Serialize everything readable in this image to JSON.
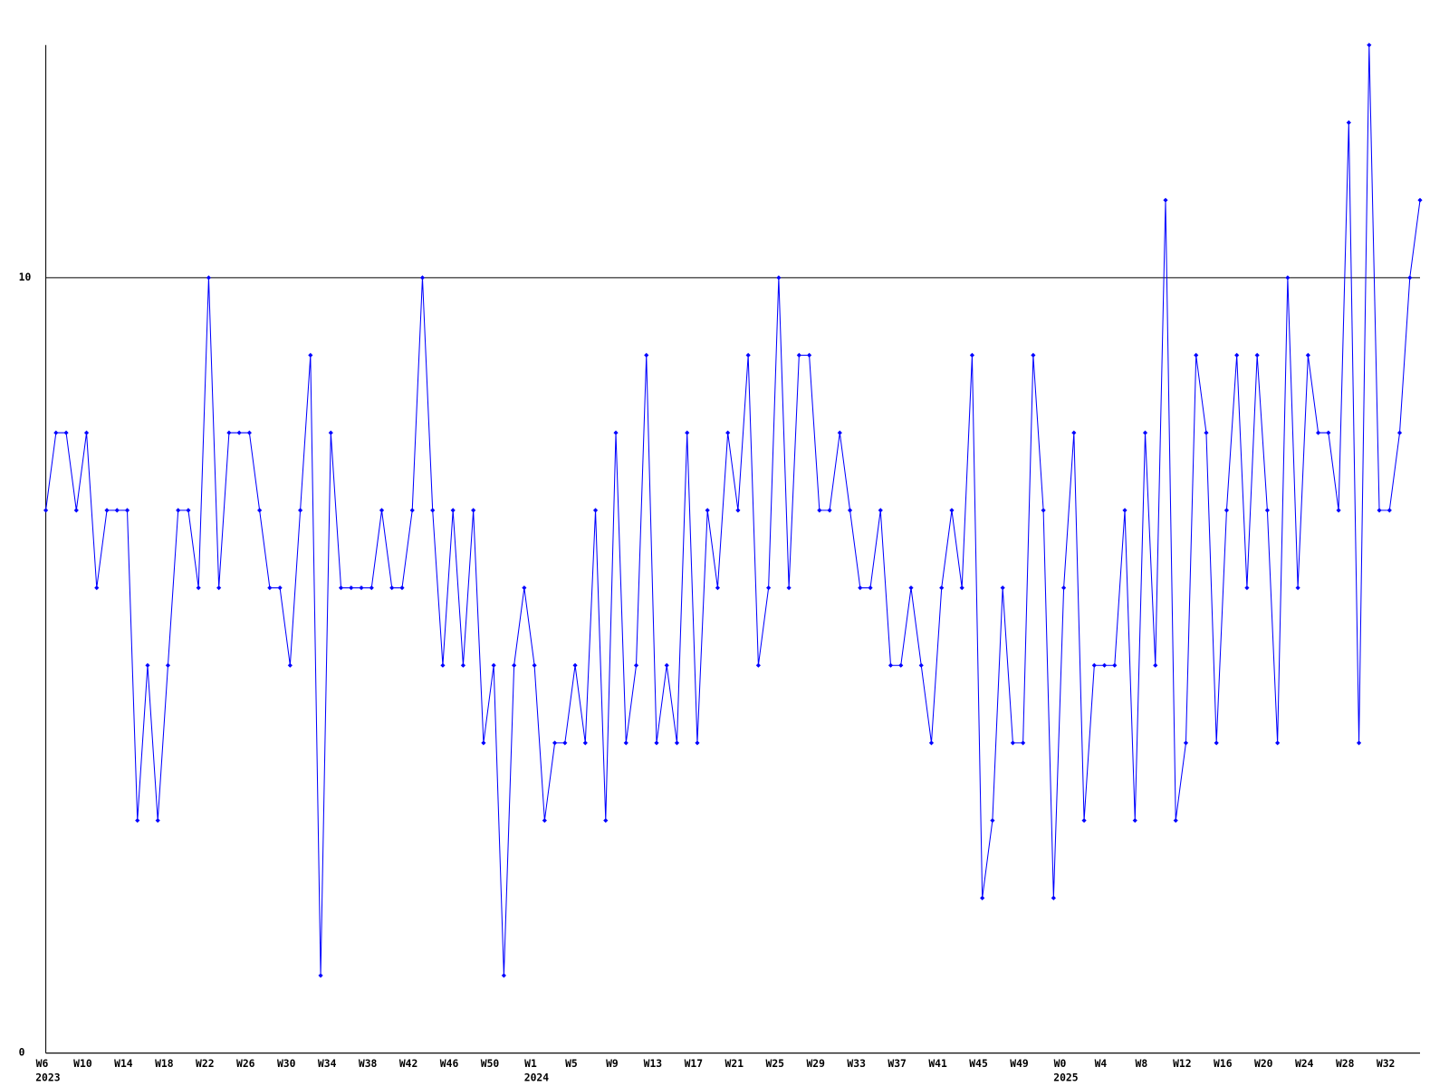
{
  "chart_data": {
    "type": "line",
    "categories": [
      [
        "W6",
        "2023"
      ],
      null,
      null,
      null,
      "W10",
      null,
      null,
      null,
      "W14",
      null,
      null,
      null,
      "W18",
      null,
      null,
      null,
      "W22",
      null,
      null,
      null,
      "W26",
      null,
      null,
      null,
      "W30",
      null,
      null,
      null,
      "W34",
      null,
      null,
      null,
      "W38",
      null,
      null,
      null,
      "W42",
      null,
      null,
      null,
      "W46",
      null,
      null,
      null,
      "W50",
      null,
      null,
      null,
      [
        "W1",
        "2024"
      ],
      null,
      null,
      null,
      "W5",
      null,
      null,
      null,
      "W9",
      null,
      null,
      null,
      "W13",
      null,
      null,
      null,
      "W17",
      null,
      null,
      null,
      "W21",
      null,
      null,
      null,
      "W25",
      null,
      null,
      null,
      "W29",
      null,
      null,
      null,
      "W33",
      null,
      null,
      null,
      "W37",
      null,
      null,
      null,
      "W41",
      null,
      null,
      null,
      "W45",
      null,
      null,
      null,
      "W49",
      null,
      null,
      null,
      [
        "W0",
        "2025"
      ],
      null,
      null,
      null,
      "W4",
      null,
      null,
      null,
      "W8",
      null,
      null,
      null,
      "W12",
      null,
      null,
      null,
      "W16",
      null,
      null,
      null,
      "W20",
      null,
      null,
      null,
      "W24",
      null,
      null,
      null,
      "W28",
      null,
      null,
      null,
      "W32",
      null,
      null,
      null
    ],
    "series": [
      {
        "color": "#0000ff",
        "values": [
          7,
          8,
          8,
          7,
          8,
          6,
          7,
          7,
          7,
          3,
          5,
          3,
          5,
          7,
          7,
          6,
          10,
          6,
          8,
          8,
          8,
          7,
          6,
          6,
          5,
          7,
          9,
          1,
          8,
          6,
          6,
          6,
          6,
          7,
          6,
          6,
          7,
          10,
          7,
          5,
          7,
          5,
          7,
          4,
          5,
          1,
          5,
          6,
          5,
          3,
          4,
          4,
          5,
          4,
          7,
          3,
          8,
          4,
          5,
          9,
          4,
          5,
          4,
          8,
          4,
          7,
          6,
          8,
          7,
          9,
          5,
          6,
          10,
          6,
          9,
          9,
          7,
          7,
          8,
          7,
          6,
          6,
          7,
          5,
          5,
          6,
          5,
          4,
          6,
          7,
          6,
          9,
          2,
          3,
          6,
          4,
          4,
          9,
          7,
          2,
          6,
          8,
          3,
          5,
          5,
          5,
          7,
          3,
          8,
          5,
          11,
          3,
          4,
          9,
          8,
          4,
          7,
          9,
          6,
          9,
          7,
          4,
          10,
          6,
          9,
          8,
          8,
          7,
          12,
          4,
          13,
          7,
          7,
          8,
          10,
          11
        ]
      }
    ],
    "ylim": [
      0,
      13
    ],
    "yticks": [
      0,
      10
    ],
    "grid": true
  }
}
